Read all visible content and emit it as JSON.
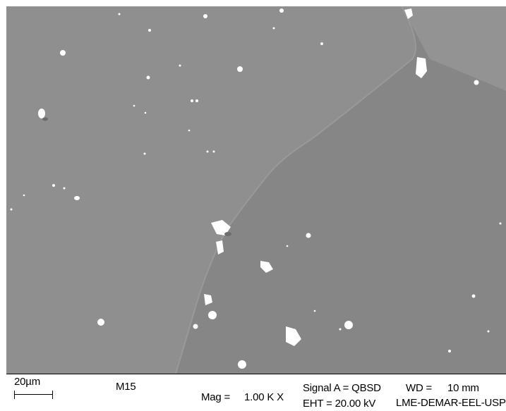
{
  "micrograph": {
    "background_color": "#8e8e8e",
    "grain_light_color": "#939393",
    "grain_dark_color": "#868686",
    "particle_color": "#ffffff"
  },
  "info": {
    "scale_label": "20µm",
    "sample": "M15",
    "mag_label": "Mag =",
    "mag_value": "1.00 K X",
    "signal": "Signal A = QBSD",
    "eht": "EHT = 20.00 kV",
    "wd_label": "WD =",
    "wd_value": "10 mm",
    "lab": "LME-DEMAR-EEL-USP"
  }
}
